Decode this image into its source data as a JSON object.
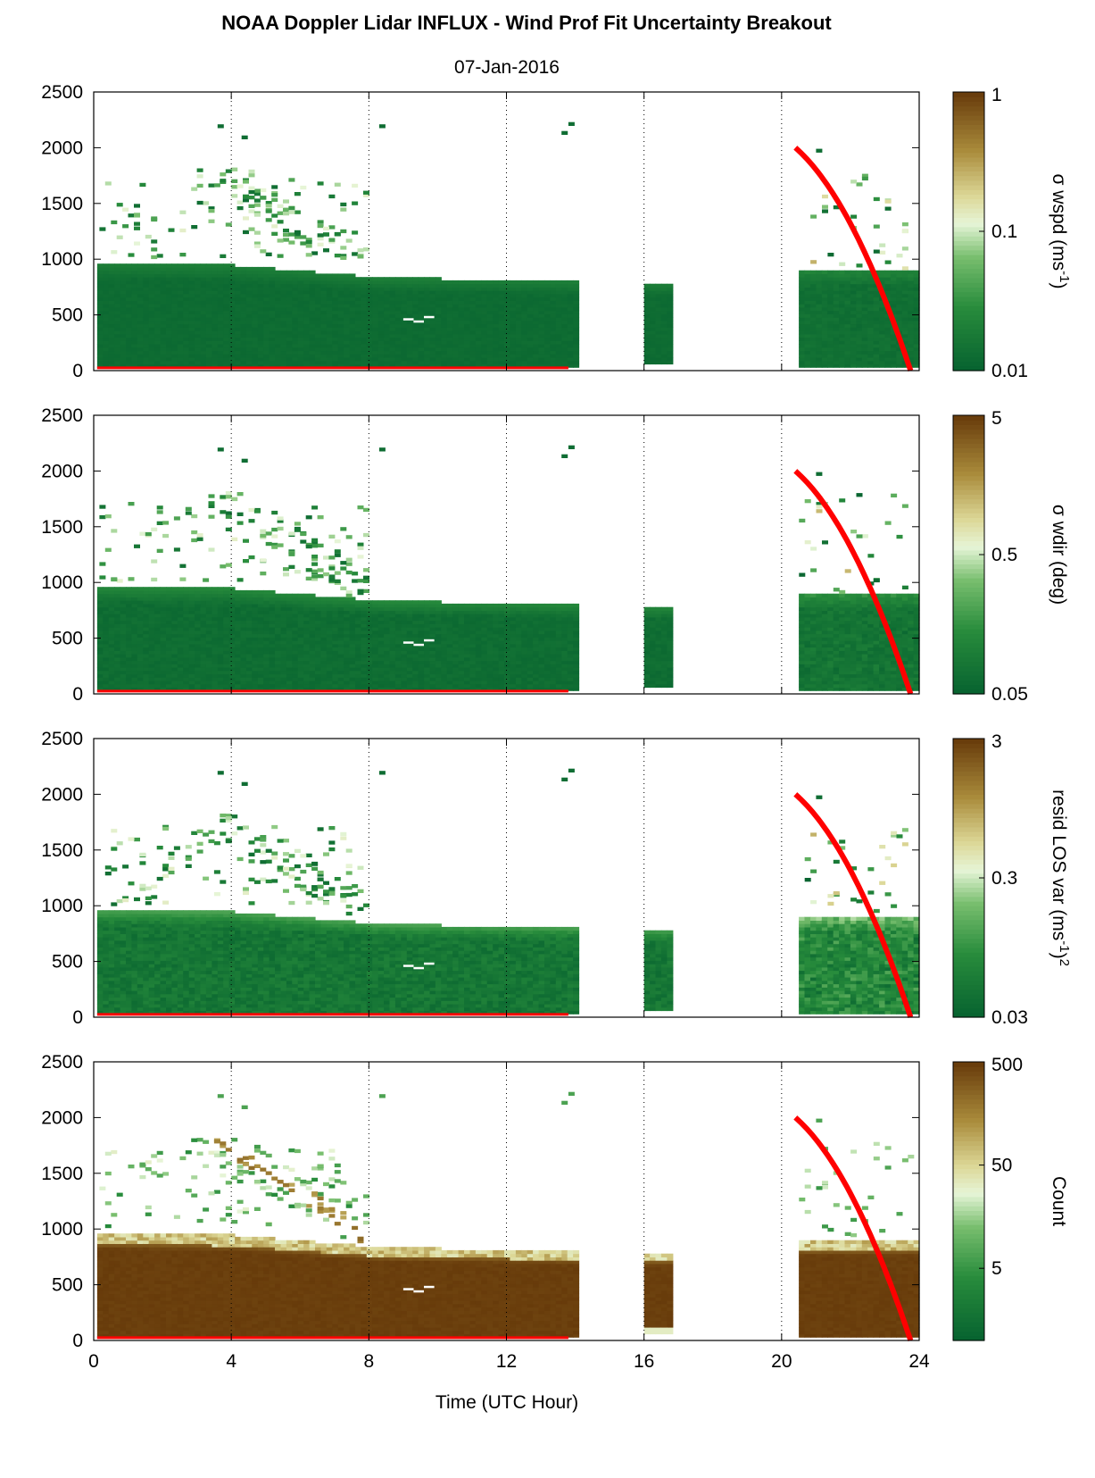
{
  "figure": {
    "title": "NOAA Doppler Lidar INFLUX - Wind Prof Fit Uncertainty Breakout",
    "subtitle": "07-Jan-2016",
    "xlabel": "Time (UTC Hour)"
  },
  "chart_data": [
    {
      "type": "heatmap",
      "xlim": [
        0,
        24
      ],
      "xticks": [
        "0",
        "4",
        "8",
        "12",
        "16",
        "20",
        "24"
      ],
      "ylim": [
        0,
        2500
      ],
      "yticks": [
        "0",
        "500",
        "1000",
        "1500",
        "2000",
        "2500"
      ],
      "grid": "dotted vertical lines",
      "colorbar": {
        "label_main": "σ wspd (ms",
        "label_sup": "-1",
        "label_tail": ")",
        "scale": "log",
        "range": [
          0.01,
          1
        ],
        "ticks": [
          "0.01",
          "0.1",
          "1"
        ]
      },
      "field": {
        "base_level": 0.04,
        "top_level": 0.15,
        "variability": 0.03
      },
      "overlay": {
        "color": "#ff0000",
        "curve_x": [
          20.4,
          23.75
        ],
        "curve_y": [
          2000,
          0
        ],
        "baseline_x": [
          0.1,
          13.8
        ],
        "baseline_y": 25
      },
      "colors": {
        "low": "#0a6b35",
        "high": "#6b3a06"
      }
    },
    {
      "type": "heatmap",
      "xlim": [
        0,
        24
      ],
      "xticks": [
        "0",
        "4",
        "8",
        "12",
        "16",
        "20",
        "24"
      ],
      "ylim": [
        0,
        2500
      ],
      "yticks": [
        "0",
        "500",
        "1000",
        "1500",
        "2000",
        "2500"
      ],
      "grid": "dotted vertical lines",
      "colorbar": {
        "label_main": "σ wdir (deg)",
        "label_sup": "",
        "label_tail": "",
        "scale": "log",
        "range": [
          0.05,
          5
        ],
        "ticks": [
          "0.05",
          "0.5",
          "5"
        ]
      },
      "field": {
        "base_level": 0.05,
        "top_level": 0.2,
        "variability": 0.05
      },
      "overlay": {
        "color": "#ff0000",
        "curve_x": [
          20.4,
          23.75
        ],
        "curve_y": [
          2000,
          0
        ],
        "baseline_x": [
          0.1,
          13.8
        ],
        "baseline_y": 25
      },
      "colors": {
        "low": "#0a6b35",
        "high": "#6b3a06"
      }
    },
    {
      "type": "heatmap",
      "xlim": [
        0,
        24
      ],
      "xticks": [
        "0",
        "4",
        "8",
        "12",
        "16",
        "20",
        "24"
      ],
      "ylim": [
        0,
        2500
      ],
      "yticks": [
        "0",
        "500",
        "1000",
        "1500",
        "2000",
        "2500"
      ],
      "grid": "dotted vertical lines",
      "colorbar": {
        "label_main": "resid LOS var (ms",
        "label_sup": "-1",
        "label_tail": ")",
        "label_tail_sup": "2",
        "scale": "log",
        "range": [
          0.03,
          3
        ],
        "ticks": [
          "0.03",
          "0.3",
          "3"
        ]
      },
      "field": {
        "base_level": 0.1,
        "top_level": 0.3,
        "variability": 0.12
      },
      "overlay": {
        "color": "#ff0000",
        "curve_x": [
          20.4,
          23.75
        ],
        "curve_y": [
          2000,
          0
        ],
        "baseline_x": [
          0.1,
          13.8
        ],
        "baseline_y": 25
      },
      "colors": {
        "low": "#0a6b35",
        "high": "#6b3a06"
      }
    },
    {
      "type": "heatmap",
      "xlim": [
        0,
        24
      ],
      "xticks": [
        "0",
        "4",
        "8",
        "12",
        "16",
        "20",
        "24"
      ],
      "ylim": [
        0,
        2500
      ],
      "yticks": [
        "0",
        "500",
        "1000",
        "1500",
        "2000",
        "2500"
      ],
      "grid": "dotted vertical lines",
      "colorbar": {
        "label_main": "Count",
        "label_sup": "",
        "label_tail": "",
        "scale": "log",
        "range": [
          1,
          500
        ],
        "ticks": [
          "5",
          "50",
          "500"
        ]
      },
      "field": {
        "base_level": 0.98,
        "top_level": 0.75,
        "variability": 0.02,
        "inverted": true
      },
      "overlay": {
        "color": "#ff0000",
        "curve_x": [
          20.4,
          23.75
        ],
        "curve_y": [
          2000,
          0
        ],
        "baseline_x": [
          0.1,
          13.8
        ],
        "baseline_y": 25
      },
      "colors": {
        "low": "#0a6b35",
        "high": "#6b3a06"
      }
    }
  ]
}
